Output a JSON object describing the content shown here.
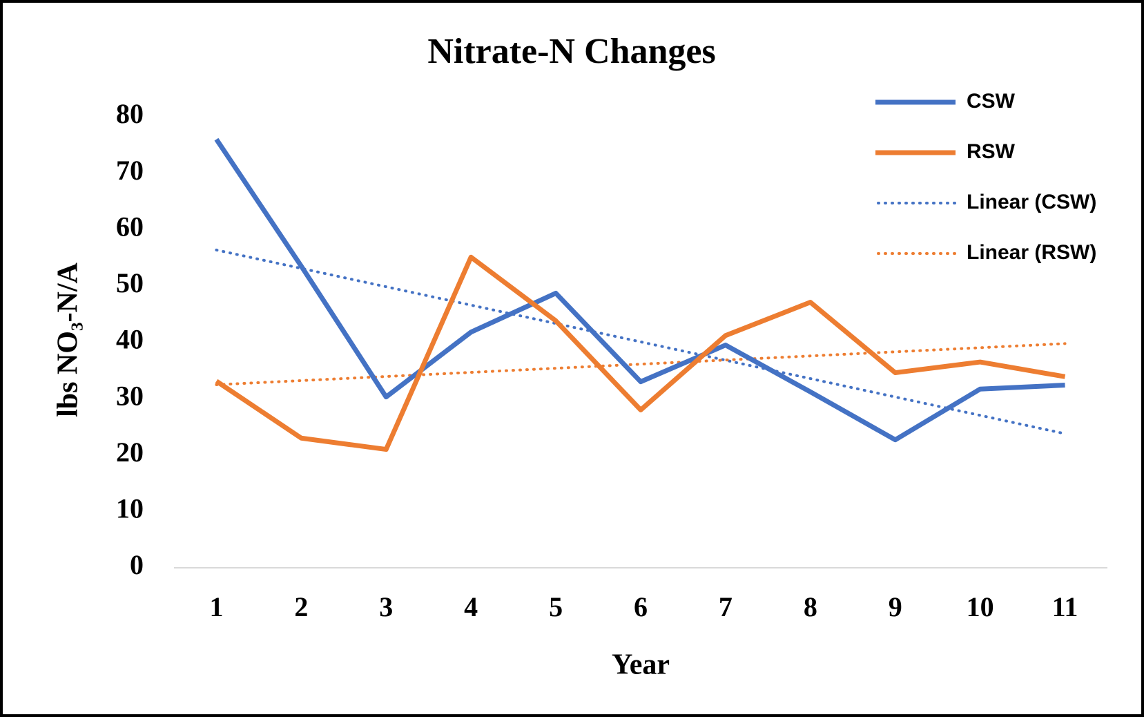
{
  "chart_data": {
    "type": "line",
    "title": "Nitrate-N Changes",
    "x_label": "Year",
    "y_label": "lbs NO₃-N/A",
    "categories": [
      "1",
      "2",
      "3",
      "4",
      "5",
      "6",
      "7",
      "8",
      "9",
      "10",
      "11"
    ],
    "series": [
      {
        "name": "CSW",
        "color": "#4472c4",
        "values": [
          76,
          53.5,
          30.3,
          41.8,
          48.7,
          33,
          39.5,
          31.2,
          22.7,
          31.7,
          32.4
        ],
        "trendline": {
          "name": "Linear (CSW)",
          "type": "linear",
          "style": "dotted"
        }
      },
      {
        "name": "RSW",
        "color": "#ed7d31",
        "values": [
          33.1,
          23,
          21,
          55.1,
          43.8,
          28,
          41.2,
          47.1,
          34.6,
          36.5,
          33.9
        ],
        "trendline": {
          "name": "Linear (RSW)",
          "type": "linear",
          "style": "dotted"
        }
      }
    ],
    "ylim": [
      0,
      80
    ],
    "yticks": [
      0,
      10,
      20,
      30,
      40,
      50,
      60,
      70,
      80
    ],
    "grid": false,
    "legend": "top-right"
  }
}
